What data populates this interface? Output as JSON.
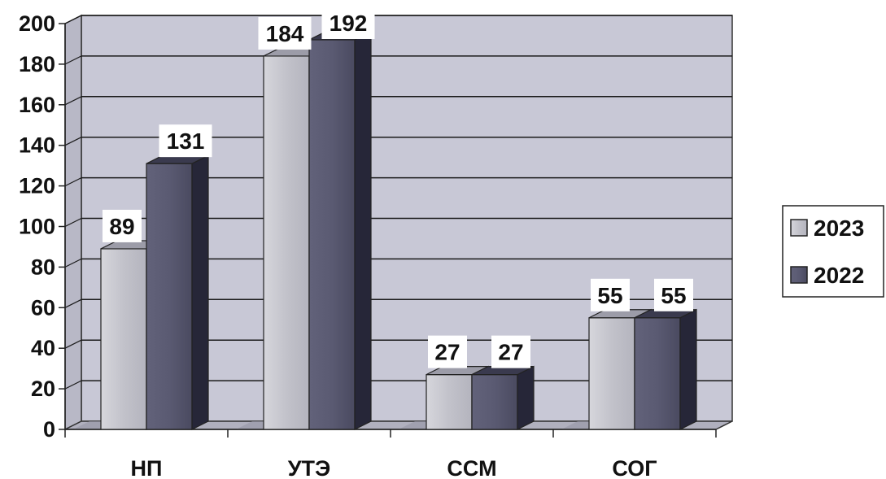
{
  "chart_data": {
    "type": "bar",
    "categories": [
      "НП",
      "УТЭ",
      "ССМ",
      "СОГ"
    ],
    "series": [
      {
        "name": "2023",
        "values": [
          89,
          184,
          27,
          55
        ],
        "color": "#c4c4cc"
      },
      {
        "name": "2022",
        "values": [
          131,
          192,
          27,
          55
        ],
        "color": "#5a5a72"
      }
    ],
    "y_ticks": [
      "0",
      "20",
      "40",
      "60",
      "80",
      "100",
      "120",
      "140",
      "160",
      "180",
      "200"
    ],
    "ylim": [
      0,
      200
    ],
    "title": "",
    "xlabel": "",
    "ylabel": "",
    "grid": true,
    "legend_position": "right",
    "plot_background": "#c8c8d6",
    "style": "3d-clustered-bar"
  }
}
